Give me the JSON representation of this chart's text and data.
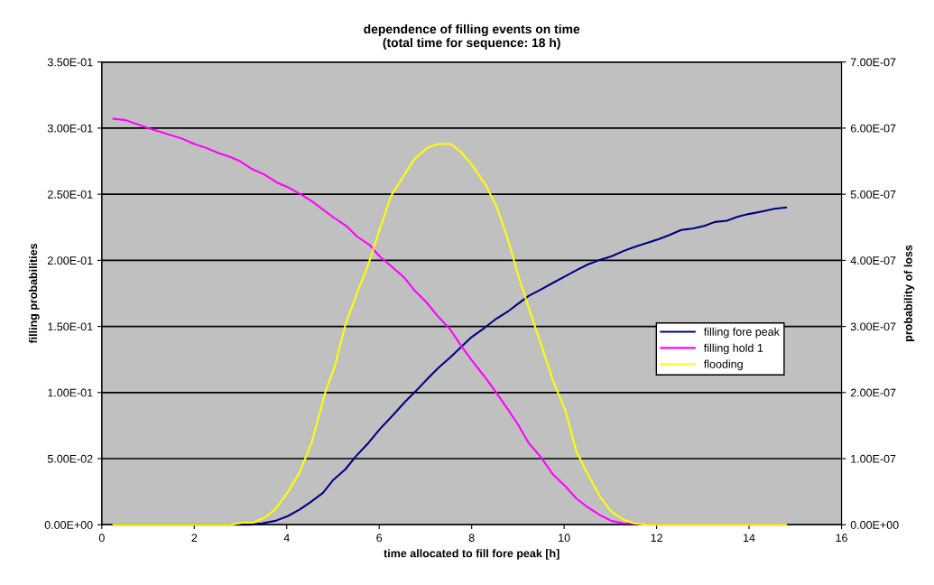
{
  "chart_data": {
    "type": "line",
    "title": "dependence of filling events on time\n(total time for sequence: 18 h)",
    "xlabel": "time allocated to fill fore peak [h]",
    "ylabel": "filling probabilities",
    "y2label": "probability of loss",
    "xlim": [
      0,
      16
    ],
    "xticks": [
      0,
      2,
      4,
      6,
      8,
      10,
      12,
      14,
      16
    ],
    "ylim": [
      0,
      0.35
    ],
    "yticks": [
      {
        "value": 0,
        "label": "0.00E+00"
      },
      {
        "value": 0.05,
        "label": "5.00E-02"
      },
      {
        "value": 0.1,
        "label": "1.00E-01"
      },
      {
        "value": 0.15,
        "label": "1.50E-01"
      },
      {
        "value": 0.2,
        "label": "2.00E-01"
      },
      {
        "value": 0.25,
        "label": "2.50E-01"
      },
      {
        "value": 0.3,
        "label": "3.00E-01"
      },
      {
        "value": 0.35,
        "label": "3.50E-01"
      }
    ],
    "y2lim": [
      0,
      7e-07
    ],
    "y2ticks": [
      {
        "value": 0,
        "label": "0.00E+00"
      },
      {
        "value": 1e-07,
        "label": "1.00E-07"
      },
      {
        "value": 2e-07,
        "label": "2.00E-07"
      },
      {
        "value": 3e-07,
        "label": "3.00E-07"
      },
      {
        "value": 4e-07,
        "label": "4.00E-07"
      },
      {
        "value": 5e-07,
        "label": "5.00E-07"
      },
      {
        "value": 6e-07,
        "label": "6.00E-07"
      },
      {
        "value": 7e-07,
        "label": "7.00E-07"
      }
    ],
    "grid": "y",
    "legend": "right",
    "marker": "none",
    "line_style": "solid",
    "series": [
      {
        "name": "filling fore peak",
        "color": "#000080",
        "x": [
          0.25,
          3.2,
          3.46,
          3.76,
          4.02,
          4.28,
          4.51,
          4.78,
          5.01,
          5.27,
          5.5,
          5.77,
          6.03,
          6.3,
          6.56,
          6.79,
          7.06,
          7.29,
          7.55,
          7.82,
          8.0,
          8.28,
          8.54,
          8.81,
          9.0,
          9.23,
          9.5,
          9.76,
          10.03,
          10.29,
          10.52,
          10.75,
          11.02,
          11.28,
          11.51,
          11.78,
          12.04,
          12.27,
          12.53,
          12.77,
          13.03,
          13.26,
          13.52,
          13.76,
          13.99,
          14.28,
          14.55,
          14.8
        ],
        "values": [
          0,
          0,
          0.001,
          0.003,
          0.0065,
          0.0115,
          0.017,
          0.024,
          0.034,
          0.042,
          0.052,
          0.062,
          0.073,
          0.083,
          0.093,
          0.101,
          0.111,
          0.119,
          0.127,
          0.136,
          0.142,
          0.149,
          0.156,
          0.162,
          0.167,
          0.173,
          0.178,
          0.183,
          0.188,
          0.193,
          0.197,
          0.2,
          0.203,
          0.207,
          0.21,
          0.213,
          0.216,
          0.219,
          0.223,
          0.224,
          0.226,
          0.229,
          0.23,
          0.233,
          0.235,
          0.237,
          0.239,
          0.24
        ]
      },
      {
        "name": "filling hold 1",
        "color": "#ff00ff",
        "x": [
          0.25,
          0.52,
          1.01,
          1.74,
          2.0,
          2.26,
          2.53,
          2.79,
          2.99,
          3.25,
          3.51,
          3.78,
          4.04,
          4.3,
          4.57,
          4.76,
          5.03,
          5.29,
          5.52,
          5.78,
          6.01,
          6.28,
          6.54,
          6.77,
          7.03,
          7.26,
          7.53,
          7.78,
          8.01,
          8.28,
          8.51,
          8.77,
          9.0,
          9.23,
          9.5,
          9.76,
          10.03,
          10.26,
          10.52,
          10.79,
          11.02,
          11.28,
          11.51,
          11.78,
          14.8
        ],
        "values": [
          0.307,
          0.306,
          0.3,
          0.292,
          0.288,
          0.285,
          0.281,
          0.278,
          0.275,
          0.269,
          0.265,
          0.259,
          0.255,
          0.25,
          0.244,
          0.239,
          0.232,
          0.226,
          0.218,
          0.212,
          0.203,
          0.195,
          0.187,
          0.177,
          0.168,
          0.158,
          0.148,
          0.135,
          0.124,
          0.112,
          0.101,
          0.088,
          0.076,
          0.062,
          0.051,
          0.038,
          0.029,
          0.02,
          0.013,
          0.007,
          0.003,
          0.001,
          0.0007,
          0,
          0
        ]
      },
      {
        "name": "flooding",
        "color": "#ffff00",
        "axis": "y2",
        "x": [
          0.25,
          2.8,
          3.03,
          3.26,
          3.53,
          3.76,
          4.02,
          4.28,
          4.55,
          4.84,
          5.04,
          5.27,
          5.54,
          5.77,
          6.03,
          6.26,
          6.56,
          6.76,
          7.06,
          7.29,
          7.55,
          7.78,
          8.01,
          8.31,
          8.54,
          8.77,
          9.0,
          9.23,
          9.5,
          9.76,
          10.03,
          10.26,
          10.52,
          10.79,
          11.02,
          11.28,
          11.51,
          11.78,
          14.8
        ],
        "values": [
          0,
          0,
          3e-09,
          3e-09,
          1.1e-08,
          2.4e-08,
          4.9e-08,
          7.9e-08,
          1.27e-07,
          2.02e-07,
          2.4e-07,
          3.03e-07,
          3.54e-07,
          3.95e-07,
          4.51e-07,
          4.98e-07,
          5.31e-07,
          5.53e-07,
          5.71e-07,
          5.76e-07,
          5.76e-07,
          5.63e-07,
          5.44e-07,
          5.13e-07,
          4.81e-07,
          4.35e-07,
          3.79e-07,
          3.29e-07,
          2.73e-07,
          2.18e-07,
          1.72e-07,
          1.12e-07,
          7.5e-08,
          4.1e-08,
          2e-08,
          8e-09,
          2e-09,
          0,
          0
        ]
      }
    ]
  }
}
